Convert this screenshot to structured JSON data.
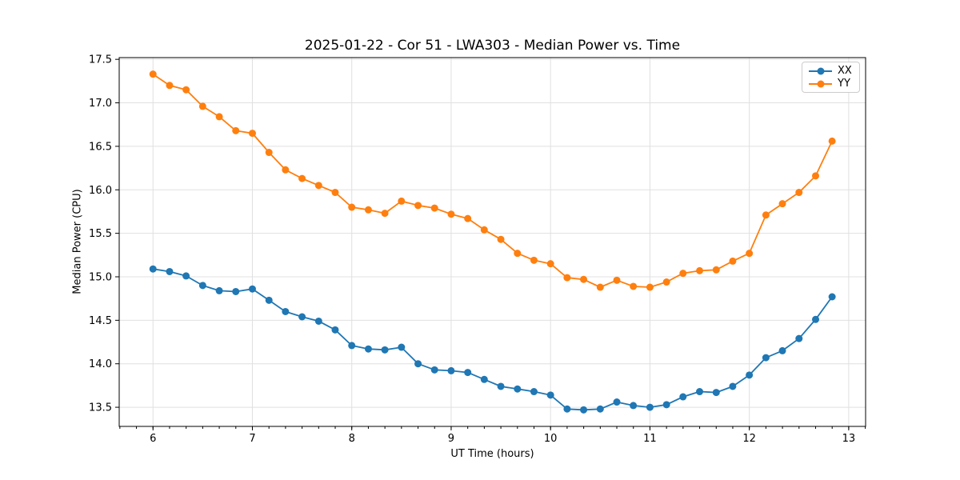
{
  "figure": {
    "background": "#ffffff",
    "title": "2025-01-22 - Cor 51 - LWA303 - Median Power vs. Time"
  },
  "chart_data": {
    "type": "line",
    "title": "2025-01-22 - Cor 51 - LWA303 - Median Power vs. Time",
    "xlabel": "UT Time (hours)",
    "ylabel": "Median Power (CPU)",
    "xlim": [
      5.66,
      13.17
    ],
    "ylim": [
      13.28,
      17.52
    ],
    "xticks": [
      6,
      7,
      8,
      9,
      10,
      11,
      12,
      13
    ],
    "xtick_labels": [
      "6",
      "7",
      "8",
      "9",
      "10",
      "11",
      "12",
      "13"
    ],
    "x_minor_step": 0.16667,
    "yticks": [
      13.5,
      14.0,
      14.5,
      15.0,
      15.5,
      16.0,
      16.5,
      17.0,
      17.5
    ],
    "ytick_labels": [
      "13.5",
      "14.0",
      "14.5",
      "15.0",
      "15.5",
      "16.0",
      "16.5",
      "17.0",
      "17.5"
    ],
    "grid": true,
    "grid_color": "#e0e0e0",
    "legend": {
      "position": "upper right"
    },
    "x": [
      6.0,
      6.167,
      6.333,
      6.5,
      6.667,
      6.833,
      7.0,
      7.167,
      7.333,
      7.5,
      7.667,
      7.833,
      8.0,
      8.167,
      8.333,
      8.5,
      8.667,
      8.833,
      9.0,
      9.167,
      9.333,
      9.5,
      9.667,
      9.833,
      10.0,
      10.167,
      10.333,
      10.5,
      10.667,
      10.833,
      11.0,
      11.167,
      11.333,
      11.5,
      11.667,
      11.833,
      12.0,
      12.167,
      12.333,
      12.5,
      12.667,
      12.833
    ],
    "series": [
      {
        "name": "XX",
        "color": "#1f77b4",
        "values": [
          15.09,
          15.06,
          15.01,
          14.9,
          14.84,
          14.83,
          14.86,
          14.73,
          14.6,
          14.54,
          14.49,
          14.39,
          14.21,
          14.17,
          14.16,
          14.19,
          14.0,
          13.93,
          13.92,
          13.9,
          13.82,
          13.74,
          13.71,
          13.68,
          13.64,
          13.48,
          13.47,
          13.48,
          13.56,
          13.52,
          13.5,
          13.53,
          13.62,
          13.68,
          13.67,
          13.74,
          13.87,
          14.07,
          14.15,
          14.29,
          14.51,
          14.77
        ]
      },
      {
        "name": "YY",
        "color": "#ff7f0e",
        "values": [
          17.33,
          17.2,
          17.15,
          16.96,
          16.84,
          16.68,
          16.65,
          16.43,
          16.23,
          16.13,
          16.05,
          15.97,
          15.8,
          15.77,
          15.73,
          15.87,
          15.82,
          15.79,
          15.72,
          15.67,
          15.54,
          15.43,
          15.27,
          15.19,
          15.15,
          14.99,
          14.97,
          14.88,
          14.96,
          14.89,
          14.88,
          14.94,
          15.04,
          15.07,
          15.08,
          15.18,
          15.27,
          15.71,
          15.84,
          15.97,
          16.16,
          16.56
        ]
      }
    ]
  }
}
